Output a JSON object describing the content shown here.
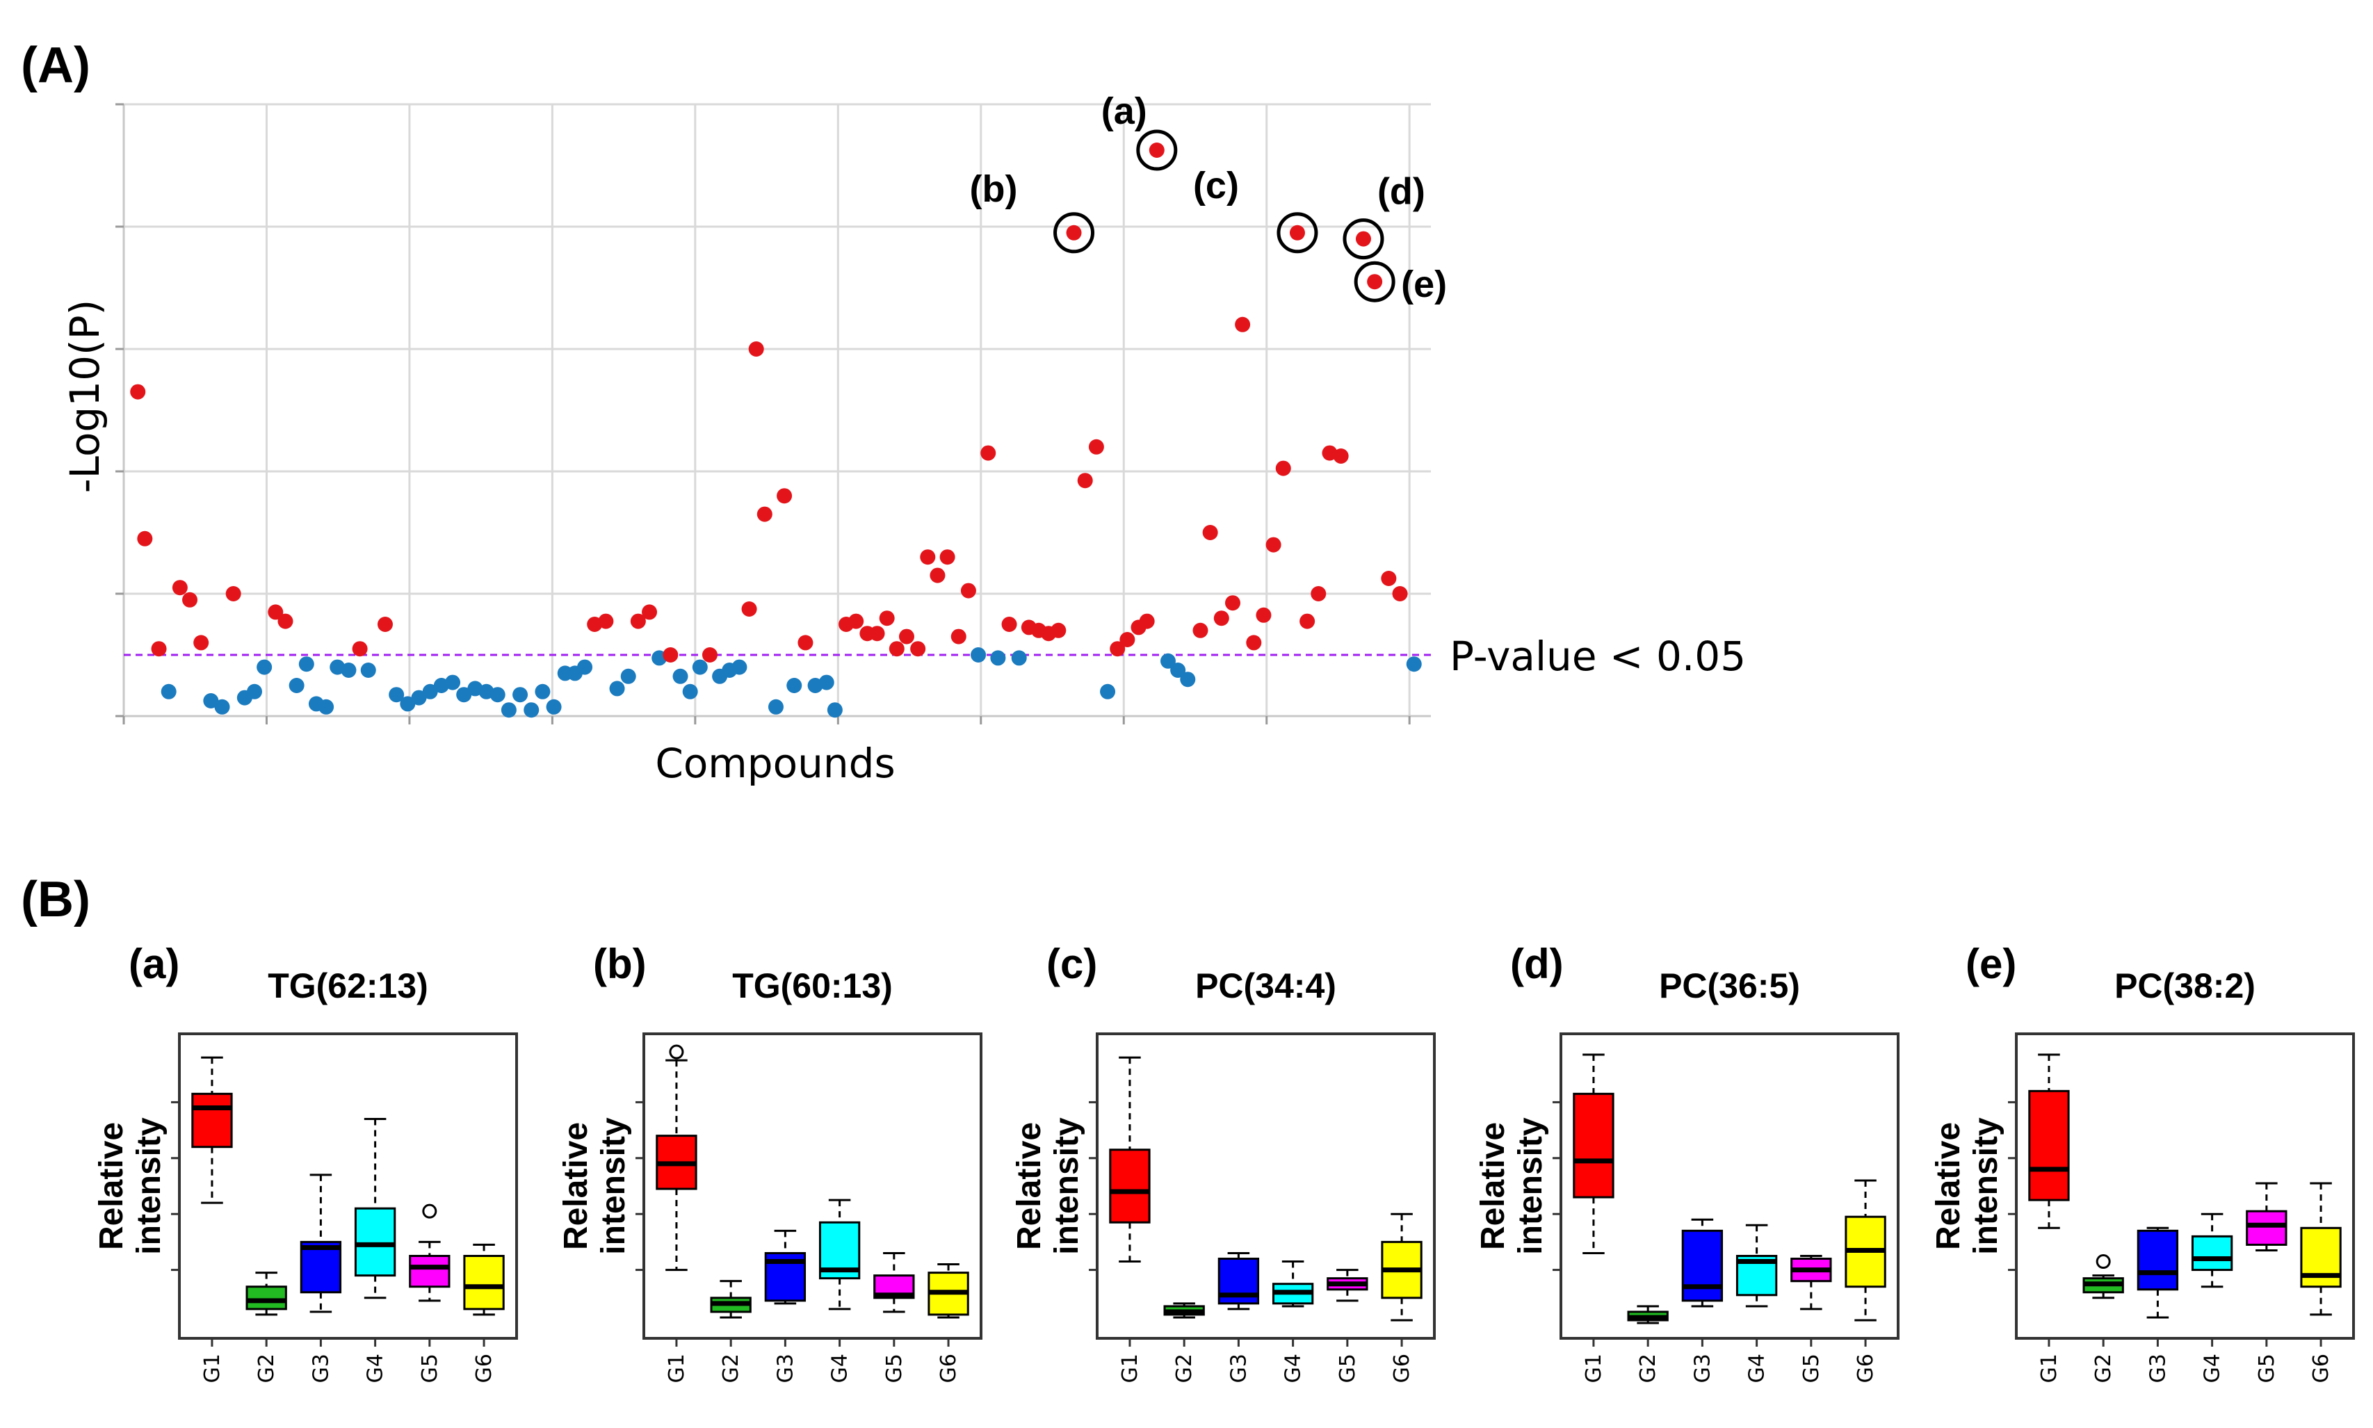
{
  "figure": {
    "panel_a_label": "(A)",
    "panel_b_label": "(B)"
  },
  "colors": {
    "significant": "#e3151b",
    "not_significant": "#1a7bbf",
    "threshold": "#a020f0",
    "grid": "#d9d9d9",
    "groups": [
      "#ff0000",
      "#22bb22",
      "#0000ff",
      "#00ffff",
      "#ff00ff",
      "#ffff00"
    ]
  },
  "chart_data": [
    {
      "type": "scatter",
      "title": "",
      "xlabel": "Compounds",
      "ylabel": "-Log10(P)",
      "ylim": [
        0,
        10
      ],
      "xlim": [
        0,
        93
      ],
      "grid": true,
      "threshold": {
        "value": 1.0,
        "label": "P-value < 0.05"
      },
      "points": [
        {
          "x": 1,
          "y": 5.3,
          "sig": true
        },
        {
          "x": 1.5,
          "y": 2.9,
          "sig": true
        },
        {
          "x": 2.5,
          "y": 1.1,
          "sig": true
        },
        {
          "x": 3.2,
          "y": 0.4,
          "sig": false
        },
        {
          "x": 4,
          "y": 2.1,
          "sig": true
        },
        {
          "x": 4.7,
          "y": 1.9,
          "sig": true
        },
        {
          "x": 5.5,
          "y": 1.2,
          "sig": true
        },
        {
          "x": 6.2,
          "y": 0.25,
          "sig": false
        },
        {
          "x": 7,
          "y": 0.15,
          "sig": false
        },
        {
          "x": 7.8,
          "y": 2.0,
          "sig": true
        },
        {
          "x": 8.6,
          "y": 0.3,
          "sig": false
        },
        {
          "x": 9.3,
          "y": 0.4,
          "sig": false
        },
        {
          "x": 10,
          "y": 0.8,
          "sig": false
        },
        {
          "x": 10.8,
          "y": 1.7,
          "sig": true
        },
        {
          "x": 11.5,
          "y": 1.55,
          "sig": true
        },
        {
          "x": 12.3,
          "y": 0.5,
          "sig": false
        },
        {
          "x": 13,
          "y": 0.85,
          "sig": false
        },
        {
          "x": 13.7,
          "y": 0.2,
          "sig": false
        },
        {
          "x": 14.4,
          "y": 0.15,
          "sig": false
        },
        {
          "x": 15.2,
          "y": 0.8,
          "sig": false
        },
        {
          "x": 16,
          "y": 0.75,
          "sig": false
        },
        {
          "x": 16.8,
          "y": 1.1,
          "sig": true
        },
        {
          "x": 17.4,
          "y": 0.75,
          "sig": false
        },
        {
          "x": 18.6,
          "y": 1.5,
          "sig": true
        },
        {
          "x": 19.4,
          "y": 0.35,
          "sig": false
        },
        {
          "x": 20.2,
          "y": 0.2,
          "sig": false
        },
        {
          "x": 21,
          "y": 0.3,
          "sig": false
        },
        {
          "x": 21.8,
          "y": 0.4,
          "sig": false
        },
        {
          "x": 22.6,
          "y": 0.5,
          "sig": false
        },
        {
          "x": 23.4,
          "y": 0.55,
          "sig": false
        },
        {
          "x": 24.2,
          "y": 0.35,
          "sig": false
        },
        {
          "x": 25,
          "y": 0.45,
          "sig": false
        },
        {
          "x": 25.8,
          "y": 0.4,
          "sig": false
        },
        {
          "x": 26.6,
          "y": 0.35,
          "sig": false
        },
        {
          "x": 27.4,
          "y": 0.1,
          "sig": false
        },
        {
          "x": 28.2,
          "y": 0.35,
          "sig": false
        },
        {
          "x": 29,
          "y": 0.1,
          "sig": false
        },
        {
          "x": 29.8,
          "y": 0.4,
          "sig": false
        },
        {
          "x": 30.6,
          "y": 0.15,
          "sig": false
        },
        {
          "x": 31.4,
          "y": 0.7,
          "sig": false
        },
        {
          "x": 32.1,
          "y": 0.7,
          "sig": false
        },
        {
          "x": 32.8,
          "y": 0.8,
          "sig": false
        },
        {
          "x": 33.5,
          "y": 1.5,
          "sig": true
        },
        {
          "x": 34.3,
          "y": 1.55,
          "sig": true
        },
        {
          "x": 35.1,
          "y": 0.45,
          "sig": false
        },
        {
          "x": 35.9,
          "y": 0.65,
          "sig": false
        },
        {
          "x": 36.6,
          "y": 1.55,
          "sig": true
        },
        {
          "x": 37.4,
          "y": 1.7,
          "sig": true
        },
        {
          "x": 38.1,
          "y": 0.95,
          "sig": false
        },
        {
          "x": 38.9,
          "y": 1.0,
          "sig": true
        },
        {
          "x": 39.6,
          "y": 0.65,
          "sig": false
        },
        {
          "x": 40.3,
          "y": 0.4,
          "sig": false
        },
        {
          "x": 41,
          "y": 0.8,
          "sig": false
        },
        {
          "x": 41.7,
          "y": 1.0,
          "sig": true
        },
        {
          "x": 42.4,
          "y": 0.65,
          "sig": false
        },
        {
          "x": 43.1,
          "y": 0.75,
          "sig": false
        },
        {
          "x": 43.8,
          "y": 0.8,
          "sig": false
        },
        {
          "x": 44.5,
          "y": 1.75,
          "sig": true
        },
        {
          "x": 45,
          "y": 6.0,
          "sig": true
        },
        {
          "x": 45.6,
          "y": 3.3,
          "sig": true
        },
        {
          "x": 46.4,
          "y": 0.15,
          "sig": false
        },
        {
          "x": 47,
          "y": 3.6,
          "sig": true
        },
        {
          "x": 47.7,
          "y": 0.5,
          "sig": false
        },
        {
          "x": 48.5,
          "y": 1.2,
          "sig": true
        },
        {
          "x": 49.2,
          "y": 0.5,
          "sig": false
        },
        {
          "x": 50,
          "y": 0.55,
          "sig": false
        },
        {
          "x": 50.6,
          "y": 0.1,
          "sig": false
        },
        {
          "x": 51.4,
          "y": 1.5,
          "sig": true
        },
        {
          "x": 52.1,
          "y": 1.55,
          "sig": true
        },
        {
          "x": 52.9,
          "y": 1.35,
          "sig": true
        },
        {
          "x": 53.6,
          "y": 1.35,
          "sig": true
        },
        {
          "x": 54.3,
          "y": 1.6,
          "sig": true
        },
        {
          "x": 55,
          "y": 1.1,
          "sig": true
        },
        {
          "x": 55.7,
          "y": 1.3,
          "sig": true
        },
        {
          "x": 56.5,
          "y": 1.1,
          "sig": true
        },
        {
          "x": 57.2,
          "y": 2.6,
          "sig": true
        },
        {
          "x": 57.9,
          "y": 2.3,
          "sig": true
        },
        {
          "x": 58.6,
          "y": 2.6,
          "sig": true
        },
        {
          "x": 59.4,
          "y": 1.3,
          "sig": true
        },
        {
          "x": 60.1,
          "y": 2.05,
          "sig": true
        },
        {
          "x": 60.8,
          "y": 1.0,
          "sig": false
        },
        {
          "x": 61.5,
          "y": 4.3,
          "sig": true
        },
        {
          "x": 62.2,
          "y": 0.95,
          "sig": false
        },
        {
          "x": 63,
          "y": 1.5,
          "sig": true
        },
        {
          "x": 63.7,
          "y": 0.95,
          "sig": false
        },
        {
          "x": 64.4,
          "y": 1.45,
          "sig": true
        },
        {
          "x": 65.1,
          "y": 1.4,
          "sig": true
        },
        {
          "x": 65.8,
          "y": 1.35,
          "sig": true
        },
        {
          "x": 66.5,
          "y": 1.4,
          "sig": true
        },
        {
          "x": 67.6,
          "y": 7.9,
          "sig": true,
          "ann": "(b)"
        },
        {
          "x": 68.4,
          "y": 3.85,
          "sig": true
        },
        {
          "x": 69.2,
          "y": 4.4,
          "sig": true
        },
        {
          "x": 70,
          "y": 0.4,
          "sig": false
        },
        {
          "x": 70.7,
          "y": 1.1,
          "sig": true
        },
        {
          "x": 71.4,
          "y": 1.25,
          "sig": true
        },
        {
          "x": 72.2,
          "y": 1.45,
          "sig": true
        },
        {
          "x": 72.8,
          "y": 1.55,
          "sig": true
        },
        {
          "x": 73.5,
          "y": 9.25,
          "sig": true,
          "ann": "(a)"
        },
        {
          "x": 74.3,
          "y": 0.9,
          "sig": false
        },
        {
          "x": 75,
          "y": 0.75,
          "sig": false
        },
        {
          "x": 75.7,
          "y": 0.6,
          "sig": false
        },
        {
          "x": 76.6,
          "y": 1.4,
          "sig": true
        },
        {
          "x": 77.3,
          "y": 3.0,
          "sig": true
        },
        {
          "x": 78.1,
          "y": 1.6,
          "sig": true
        },
        {
          "x": 78.9,
          "y": 1.85,
          "sig": true
        },
        {
          "x": 79.6,
          "y": 6.4,
          "sig": true
        },
        {
          "x": 80.4,
          "y": 1.2,
          "sig": true
        },
        {
          "x": 81.1,
          "y": 1.65,
          "sig": true
        },
        {
          "x": 81.8,
          "y": 2.8,
          "sig": true
        },
        {
          "x": 82.5,
          "y": 4.05,
          "sig": true
        },
        {
          "x": 83.5,
          "y": 7.9,
          "sig": true,
          "ann": "(c)"
        },
        {
          "x": 84.2,
          "y": 1.55,
          "sig": true
        },
        {
          "x": 85,
          "y": 2.0,
          "sig": true
        },
        {
          "x": 85.8,
          "y": 4.3,
          "sig": true
        },
        {
          "x": 86.6,
          "y": 4.25,
          "sig": true
        },
        {
          "x": 88.2,
          "y": 7.8,
          "sig": true,
          "ann": "(d)"
        },
        {
          "x": 89,
          "y": 7.1,
          "sig": true,
          "ann": "(e)"
        },
        {
          "x": 90,
          "y": 2.25,
          "sig": true
        },
        {
          "x": 90.8,
          "y": 2.0,
          "sig": true
        },
        {
          "x": 91.8,
          "y": 0.85,
          "sig": false
        }
      ]
    },
    {
      "type": "box",
      "tag": "(a)",
      "title": "TG(62:13)",
      "ylabel": [
        "Relative",
        "intensity"
      ],
      "categories": [
        "G1",
        "G2",
        "G3",
        "G4",
        "G5",
        "G6"
      ],
      "ylim": [
        0,
        10
      ],
      "boxes": [
        {
          "min": 4.4,
          "q1": 6.4,
          "median": 7.8,
          "q3": 8.3,
          "max": 9.6
        },
        {
          "min": 0.4,
          "q1": 0.6,
          "median": 0.9,
          "q3": 1.4,
          "max": 1.9
        },
        {
          "min": 0.5,
          "q1": 1.2,
          "median": 2.8,
          "q3": 3.0,
          "max": 5.4
        },
        {
          "min": 1.0,
          "q1": 1.8,
          "median": 2.9,
          "q3": 4.2,
          "max": 7.4
        },
        {
          "min": 0.9,
          "q1": 1.4,
          "median": 2.1,
          "q3": 2.5,
          "max": 3.0,
          "outliers": [
            4.1
          ]
        },
        {
          "min": 0.4,
          "q1": 0.6,
          "median": 1.4,
          "q3": 2.5,
          "max": 2.9
        }
      ]
    },
    {
      "type": "box",
      "tag": "(b)",
      "title": "TG(60:13)",
      "ylabel": [
        "Relative",
        "intensity"
      ],
      "categories": [
        "G1",
        "G2",
        "G3",
        "G4",
        "G5",
        "G6"
      ],
      "ylim": [
        0,
        10
      ],
      "boxes": [
        {
          "min": 2.0,
          "q1": 4.9,
          "median": 5.8,
          "q3": 6.8,
          "max": 9.5,
          "outliers": [
            9.8
          ]
        },
        {
          "min": 0.3,
          "q1": 0.5,
          "median": 0.8,
          "q3": 1.0,
          "max": 1.6
        },
        {
          "min": 0.8,
          "q1": 0.9,
          "median": 2.3,
          "q3": 2.6,
          "max": 3.4
        },
        {
          "min": 0.6,
          "q1": 1.7,
          "median": 2.0,
          "q3": 3.7,
          "max": 4.5
        },
        {
          "min": 0.5,
          "q1": 1.0,
          "median": 1.1,
          "q3": 1.8,
          "max": 2.6
        },
        {
          "min": 0.3,
          "q1": 0.4,
          "median": 1.2,
          "q3": 1.9,
          "max": 2.2
        }
      ]
    },
    {
      "type": "box",
      "tag": "(c)",
      "title": "PC(34:4)",
      "ylabel": [
        "Relative",
        "intensity"
      ],
      "categories": [
        "G1",
        "G2",
        "G3",
        "G4",
        "G5",
        "G6"
      ],
      "ylim": [
        0,
        10
      ],
      "boxes": [
        {
          "min": 2.3,
          "q1": 3.7,
          "median": 4.8,
          "q3": 6.3,
          "max": 9.6
        },
        {
          "min": 0.3,
          "q1": 0.4,
          "median": 0.5,
          "q3": 0.7,
          "max": 0.8
        },
        {
          "min": 0.6,
          "q1": 0.8,
          "median": 1.1,
          "q3": 2.4,
          "max": 2.6
        },
        {
          "min": 0.7,
          "q1": 0.8,
          "median": 1.2,
          "q3": 1.5,
          "max": 2.3
        },
        {
          "min": 0.9,
          "q1": 1.3,
          "median": 1.5,
          "q3": 1.7,
          "max": 2.0
        },
        {
          "min": 0.2,
          "q1": 1.0,
          "median": 2.0,
          "q3": 3.0,
          "max": 4.0
        }
      ]
    },
    {
      "type": "box",
      "tag": "(d)",
      "title": "PC(36:5)",
      "ylabel": [
        "Relative",
        "intensity"
      ],
      "categories": [
        "G1",
        "G2",
        "G3",
        "G4",
        "G5",
        "G6"
      ],
      "ylim": [
        0,
        10
      ],
      "boxes": [
        {
          "min": 2.6,
          "q1": 4.6,
          "median": 5.9,
          "q3": 8.3,
          "max": 9.7
        },
        {
          "min": 0.1,
          "q1": 0.2,
          "median": 0.3,
          "q3": 0.5,
          "max": 0.7
        },
        {
          "min": 0.7,
          "q1": 0.9,
          "median": 1.4,
          "q3": 3.4,
          "max": 3.8
        },
        {
          "min": 0.7,
          "q1": 1.1,
          "median": 2.3,
          "q3": 2.5,
          "max": 3.6
        },
        {
          "min": 0.6,
          "q1": 1.6,
          "median": 2.0,
          "q3": 2.4,
          "max": 2.5
        },
        {
          "min": 0.2,
          "q1": 1.4,
          "median": 2.7,
          "q3": 3.9,
          "max": 5.2
        }
      ]
    },
    {
      "type": "box",
      "tag": "(e)",
      "title": "PC(38:2)",
      "ylabel": [
        "Relative",
        "intensity"
      ],
      "categories": [
        "G1",
        "G2",
        "G3",
        "G4",
        "G5",
        "G6"
      ],
      "ylim": [
        0,
        10
      ],
      "boxes": [
        {
          "min": 3.5,
          "q1": 4.5,
          "median": 5.6,
          "q3": 8.4,
          "max": 9.7
        },
        {
          "min": 1.0,
          "q1": 1.2,
          "median": 1.5,
          "q3": 1.7,
          "max": 1.8,
          "outliers": [
            2.3
          ]
        },
        {
          "min": 0.3,
          "q1": 1.3,
          "median": 1.9,
          "q3": 3.4,
          "max": 3.5
        },
        {
          "min": 1.4,
          "q1": 2.0,
          "median": 2.4,
          "q3": 3.2,
          "max": 4.0
        },
        {
          "min": 2.7,
          "q1": 2.9,
          "median": 3.6,
          "q3": 4.1,
          "max": 5.1
        },
        {
          "min": 0.4,
          "q1": 1.4,
          "median": 1.8,
          "q3": 3.5,
          "max": 5.1
        }
      ]
    }
  ]
}
